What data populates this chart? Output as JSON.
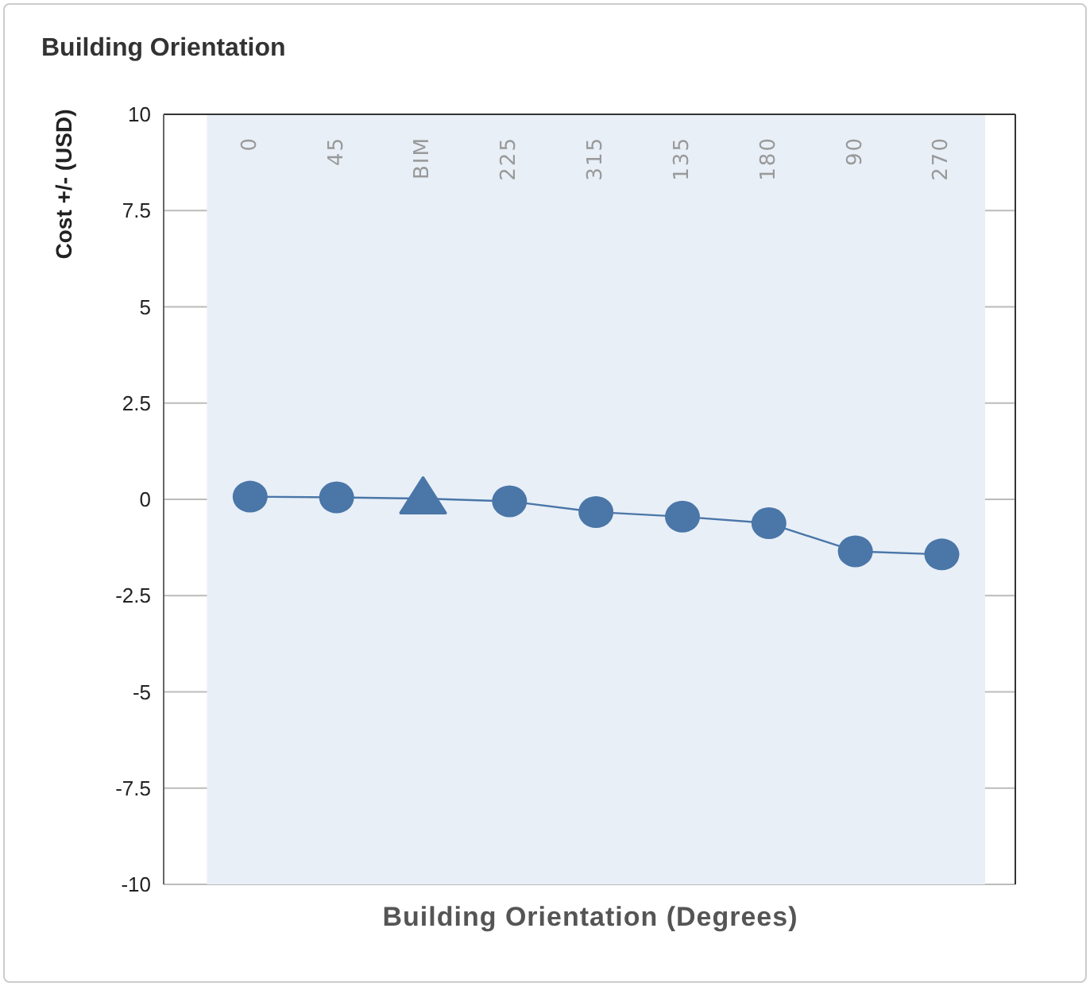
{
  "chart_data": {
    "type": "line",
    "title": "Building Orientation",
    "xlabel": "Building Orientation (Degrees)",
    "ylabel": "Cost +/- (USD)",
    "categories": [
      "0",
      "45",
      "BIM",
      "225",
      "315",
      "135",
      "180",
      "90",
      "270"
    ],
    "series": [
      {
        "color": "#4a76a8",
        "marker": "none",
        "values": [
          0.07,
          0.05,
          0.02,
          -0.05,
          -0.33,
          -0.45,
          -0.62,
          -1.35,
          -1.43
        ]
      },
      {
        "type": "scatter",
        "color": "#4a76a8",
        "marker": "circle",
        "values": [
          0.07,
          0.05,
          null,
          -0.05,
          -0.33,
          -0.45,
          -0.62,
          -1.35,
          -1.43
        ]
      },
      {
        "type": "scatter",
        "color": "#4a76a8",
        "marker": "triangle",
        "values": [
          null,
          null,
          0.02,
          null,
          null,
          null,
          null,
          null,
          null
        ]
      }
    ],
    "ylim": [
      -10,
      10
    ],
    "yticks": [
      -10,
      {
        "value": -7.5,
        "label": "-7.5"
      },
      -5,
      {
        "value": -2.5,
        "label": "-2.5"
      },
      0,
      2.5,
      5,
      7.5,
      10
    ],
    "bands": [
      {
        "axis": "x",
        "from": "0",
        "to": "270",
        "color": "#e8eff7"
      }
    ],
    "grid": "y"
  }
}
